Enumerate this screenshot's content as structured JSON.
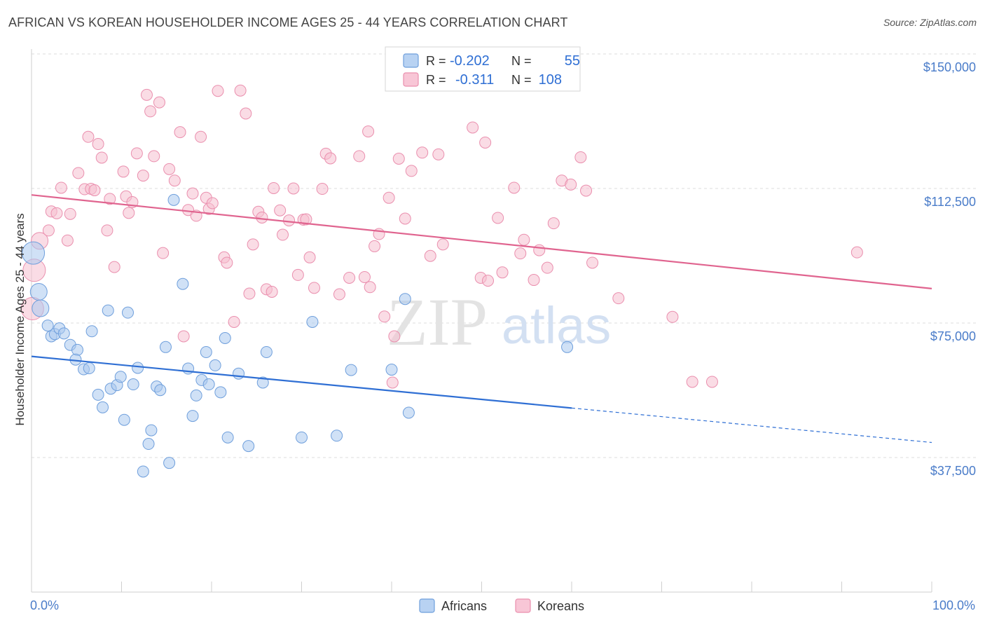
{
  "title": "AFRICAN VS KOREAN HOUSEHOLDER INCOME AGES 25 - 44 YEARS CORRELATION CHART",
  "source": "Source: ZipAtlas.com",
  "watermark": {
    "zip": "ZIP",
    "atlas": "atlas"
  },
  "legend_top": {
    "rows": [
      {
        "r_label": "R = ",
        "r_value": "-0.202",
        "n_label": "N = ",
        "n_value": "55"
      },
      {
        "r_label": "R = ",
        "r_value": "-0.311",
        "n_label": "N = ",
        "n_value": "108"
      }
    ]
  },
  "legend_bottom": {
    "africans": "Africans",
    "koreans": "Koreans"
  },
  "colors": {
    "africans_fill": "#a9c9ef",
    "africans_stroke": "#6f9fdc",
    "africans_line": "#2f6fd4",
    "koreans_fill": "#f6bfd0",
    "koreans_stroke": "#ea8fae",
    "koreans_line": "#e0648f",
    "tick_text": "#4a7cc9",
    "grid": "#dddddd"
  },
  "chart_data": {
    "type": "scatter",
    "title": "AFRICAN VS KOREAN HOUSEHOLDER INCOME AGES 25 - 44 YEARS CORRELATION CHART",
    "xlabel": "",
    "ylabel": "Householder Income Ages 25 - 44 years",
    "xlim": [
      0,
      100
    ],
    "ylim": [
      0,
      162000
    ],
    "x_tick_labels": [
      "0.0%",
      "100.0%"
    ],
    "y_ticks": [
      {
        "value": 37500,
        "label": "$37,500"
      },
      {
        "value": 75000,
        "label": "$75,000"
      },
      {
        "value": 112500,
        "label": "$112,500"
      },
      {
        "value": 150000,
        "label": "$150,000"
      }
    ],
    "grid": "horizontal dashed",
    "legend_placement": "top-center",
    "series": [
      {
        "name": "Africans",
        "r": -0.202,
        "n": 55,
        "trend": {
          "x0": 0,
          "y0": 65700,
          "x1": 60,
          "y1": 51300,
          "dashed_to_x": 100,
          "dashed_to_y": 41700
        },
        "points": [
          [
            0.2,
            94500,
            "l"
          ],
          [
            0.8,
            83700,
            "m"
          ],
          [
            1.0,
            79100,
            "m"
          ],
          [
            1.8,
            74300
          ],
          [
            2.2,
            71300
          ],
          [
            2.6,
            71900
          ],
          [
            3.1,
            73500
          ],
          [
            3.6,
            72100
          ],
          [
            4.3,
            68900
          ],
          [
            5.1,
            67500
          ],
          [
            4.9,
            64800
          ],
          [
            5.8,
            62100
          ],
          [
            6.4,
            62400
          ],
          [
            6.7,
            72700
          ],
          [
            7.4,
            55000
          ],
          [
            7.9,
            51500
          ],
          [
            8.5,
            78500
          ],
          [
            8.8,
            56700
          ],
          [
            9.5,
            57700
          ],
          [
            9.9,
            60000
          ],
          [
            10.3,
            48000
          ],
          [
            10.7,
            77900
          ],
          [
            11.3,
            57900
          ],
          [
            11.8,
            62500
          ],
          [
            12.4,
            33600
          ],
          [
            13.0,
            41300
          ],
          [
            13.3,
            45100
          ],
          [
            13.9,
            57300
          ],
          [
            14.3,
            56300
          ],
          [
            14.9,
            68300
          ],
          [
            15.3,
            36000
          ],
          [
            15.8,
            109300
          ],
          [
            16.8,
            85900
          ],
          [
            17.4,
            62300
          ],
          [
            17.9,
            49100
          ],
          [
            18.3,
            54800
          ],
          [
            18.9,
            59100
          ],
          [
            19.4,
            66900
          ],
          [
            19.7,
            57900
          ],
          [
            20.4,
            63200
          ],
          [
            21.0,
            55700
          ],
          [
            21.5,
            70800
          ],
          [
            21.8,
            43100
          ],
          [
            23.0,
            60900
          ],
          [
            24.1,
            40700
          ],
          [
            25.7,
            58400
          ],
          [
            26.1,
            66900
          ],
          [
            30.0,
            43100
          ],
          [
            31.2,
            75300
          ],
          [
            33.9,
            43600
          ],
          [
            35.5,
            61900
          ],
          [
            40.0,
            62000
          ],
          [
            41.5,
            81700
          ],
          [
            41.9,
            50000
          ],
          [
            59.5,
            68300
          ]
        ]
      },
      {
        "name": "Koreans",
        "r": -0.311,
        "n": 108,
        "trend": {
          "x0": 0,
          "y0": 110700,
          "x1": 100,
          "y1": 84600
        },
        "points": [
          [
            0.1,
            79000,
            "l"
          ],
          [
            0.3,
            89700,
            "l"
          ],
          [
            0.9,
            97900,
            "m"
          ],
          [
            1.9,
            100800
          ],
          [
            2.2,
            106100
          ],
          [
            2.8,
            105600
          ],
          [
            3.3,
            112700
          ],
          [
            4.0,
            98000
          ],
          [
            4.3,
            105400
          ],
          [
            5.2,
            116800
          ],
          [
            5.9,
            112300
          ],
          [
            6.3,
            126900
          ],
          [
            6.6,
            112400
          ],
          [
            7.0,
            112000
          ],
          [
            7.4,
            124900
          ],
          [
            7.8,
            121100
          ],
          [
            8.4,
            100800
          ],
          [
            8.7,
            109600
          ],
          [
            9.2,
            90600
          ],
          [
            10.2,
            117200
          ],
          [
            10.5,
            110300
          ],
          [
            10.8,
            105700
          ],
          [
            11.2,
            108700
          ],
          [
            11.7,
            122300
          ],
          [
            12.4,
            116100
          ],
          [
            12.8,
            138600
          ],
          [
            13.2,
            134000
          ],
          [
            13.6,
            121500
          ],
          [
            14.2,
            136500
          ],
          [
            14.6,
            94500
          ],
          [
            15.3,
            117900
          ],
          [
            15.9,
            114700
          ],
          [
            16.5,
            128200
          ],
          [
            16.9,
            71300
          ],
          [
            17.4,
            106500
          ],
          [
            17.9,
            111100
          ],
          [
            18.3,
            104900
          ],
          [
            18.8,
            126900
          ],
          [
            19.4,
            109900
          ],
          [
            19.7,
            106800
          ],
          [
            20.1,
            108400
          ],
          [
            20.7,
            139700
          ],
          [
            21.4,
            93300
          ],
          [
            21.7,
            91800
          ],
          [
            22.5,
            75300
          ],
          [
            23.2,
            139800
          ],
          [
            23.8,
            133400
          ],
          [
            24.2,
            83200
          ],
          [
            24.6,
            96900
          ],
          [
            25.2,
            106000
          ],
          [
            25.6,
            104400
          ],
          [
            26.1,
            84400
          ],
          [
            26.7,
            83700
          ],
          [
            26.9,
            112600
          ],
          [
            27.6,
            106400
          ],
          [
            27.9,
            99600
          ],
          [
            28.6,
            103600
          ],
          [
            29.1,
            112500
          ],
          [
            29.6,
            88400
          ],
          [
            30.2,
            103800
          ],
          [
            30.5,
            103900
          ],
          [
            30.9,
            93300
          ],
          [
            31.4,
            84800
          ],
          [
            32.3,
            112400
          ],
          [
            32.7,
            122200
          ],
          [
            33.2,
            120900
          ],
          [
            34.2,
            83000
          ],
          [
            35.3,
            87600
          ],
          [
            36.4,
            121500
          ],
          [
            37.0,
            87800
          ],
          [
            37.4,
            128400
          ],
          [
            37.6,
            85000
          ],
          [
            38.1,
            96400
          ],
          [
            38.6,
            99800
          ],
          [
            39.2,
            76800
          ],
          [
            39.7,
            109900
          ],
          [
            40.1,
            58400
          ],
          [
            40.3,
            71300
          ],
          [
            40.8,
            120800
          ],
          [
            41.5,
            104100
          ],
          [
            42.2,
            117400
          ],
          [
            43.4,
            122500
          ],
          [
            44.3,
            93700
          ],
          [
            45.2,
            122000
          ],
          [
            45.7,
            96900
          ],
          [
            49.0,
            129500
          ],
          [
            49.9,
            87600
          ],
          [
            50.7,
            86800
          ],
          [
            50.4,
            125300
          ],
          [
            51.8,
            104300
          ],
          [
            52.3,
            89100
          ],
          [
            53.6,
            112700
          ],
          [
            54.3,
            94400
          ],
          [
            54.7,
            98200
          ],
          [
            55.8,
            87000
          ],
          [
            56.4,
            95300
          ],
          [
            57.3,
            90400
          ],
          [
            58.0,
            102800
          ],
          [
            58.9,
            114700
          ],
          [
            59.9,
            113600
          ],
          [
            61.0,
            121200
          ],
          [
            61.6,
            111900
          ],
          [
            62.3,
            91800
          ],
          [
            65.2,
            81900
          ],
          [
            71.2,
            76700
          ],
          [
            73.4,
            58600
          ],
          [
            75.6,
            58600
          ],
          [
            91.7,
            94700
          ]
        ]
      }
    ]
  }
}
